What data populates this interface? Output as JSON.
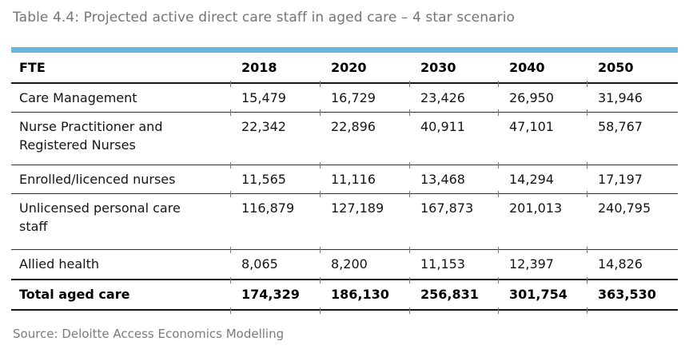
{
  "title": "Table 4.4: Projected active direct care staff in aged care – 4 star scenario",
  "source": "Source: Deloitte Access Economics Modelling",
  "colors": {
    "accent_bar": "#6cb5de",
    "title_text": "#747474",
    "source_text": "#7b7b7b",
    "rule_dark": "#141414"
  },
  "table": {
    "type": "table",
    "columns": [
      "FTE",
      "2018",
      "2020",
      "2030",
      "2040",
      "2050"
    ],
    "rows": [
      {
        "label": "Care Management",
        "values": [
          "15,479",
          "16,729",
          "23,426",
          "26,950",
          "31,946"
        ],
        "bold": false
      },
      {
        "label": "Nurse Practitioner and Registered Nurses",
        "values": [
          "22,342",
          "22,896",
          "40,911",
          "47,101",
          "58,767"
        ],
        "bold": false
      },
      {
        "label": "Enrolled/licenced nurses",
        "values": [
          "11,565",
          "11,116",
          "13,468",
          "14,294",
          "17,197"
        ],
        "bold": false
      },
      {
        "label": "Unlicensed personal care staff",
        "values": [
          "116,879",
          "127,189",
          "167,873",
          "201,013",
          "240,795"
        ],
        "bold": false
      },
      {
        "label": "Allied health",
        "values": [
          "8,065",
          "8,200",
          "11,153",
          "12,397",
          "14,826"
        ],
        "bold": false
      },
      {
        "label": "Total aged care",
        "values": [
          "174,329",
          "186,130",
          "256,831",
          "301,754",
          "363,530"
        ],
        "bold": true
      }
    ]
  }
}
